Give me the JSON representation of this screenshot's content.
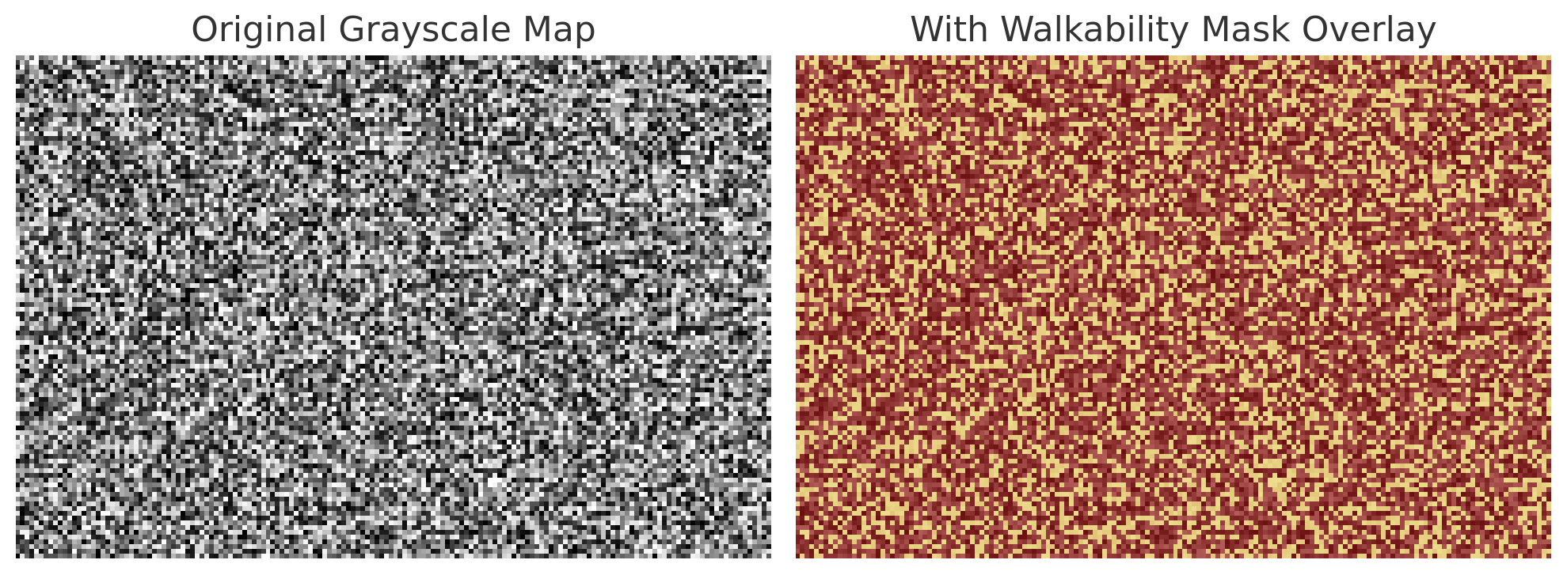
{
  "chart_data": [
    {
      "type": "heatmap",
      "title": "Original Grayscale Map",
      "colormap": "gray",
      "grid": false,
      "axes_visible": false,
      "cells_x": 160,
      "cells_y": 106,
      "value_range": [
        0,
        255
      ],
      "colors": {
        "low": "#000000",
        "high": "#ffffff"
      }
    },
    {
      "type": "heatmap",
      "title": "With Walkability Mask Overlay",
      "colormap": "walkability-overlay",
      "grid": false,
      "axes_visible": false,
      "cells_x": 160,
      "cells_y": 106,
      "value_range": [
        0,
        255
      ],
      "colors": {
        "dark_blocked": "#6b0f10",
        "mid_blocked": "#b25c57",
        "walkable": "#ecdc8c"
      }
    }
  ]
}
